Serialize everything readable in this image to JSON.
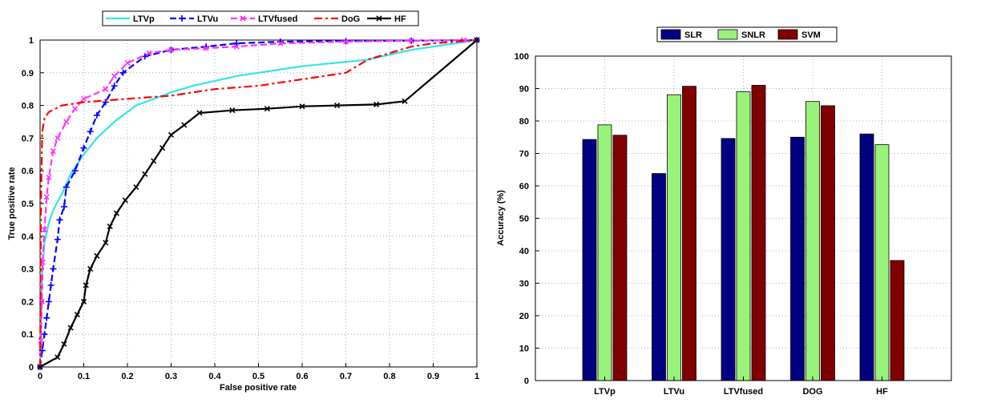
{
  "chart_data": [
    {
      "type": "line",
      "xlabel": "False positive rate",
      "ylabel": "True positive rate",
      "xlim": [
        0,
        1
      ],
      "ylim": [
        0,
        1
      ],
      "xticks": [
        "0",
        "0.1",
        "0.2",
        "0.3",
        "0.4",
        "0.5",
        "0.6",
        "0.7",
        "0.8",
        "0.9",
        "1"
      ],
      "yticks": [
        "0",
        "0.1",
        "0.2",
        "0.3",
        "0.4",
        "0.5",
        "0.6",
        "0.7",
        "0.8",
        "0.9",
        "1"
      ],
      "grid": true,
      "legend": "top",
      "series": [
        {
          "name": "LTVp",
          "color": "#33e6e6",
          "dash": "solid",
          "marker": "none",
          "points": [
            [
              0,
              0
            ],
            [
              0.005,
              0.3
            ],
            [
              0.01,
              0.38
            ],
            [
              0.02,
              0.44
            ],
            [
              0.03,
              0.48
            ],
            [
              0.05,
              0.53
            ],
            [
              0.07,
              0.59
            ],
            [
              0.1,
              0.65
            ],
            [
              0.13,
              0.7
            ],
            [
              0.17,
              0.75
            ],
            [
              0.22,
              0.8
            ],
            [
              0.3,
              0.84
            ],
            [
              0.35,
              0.86
            ],
            [
              0.45,
              0.89
            ],
            [
              0.6,
              0.92
            ],
            [
              0.75,
              0.94
            ],
            [
              0.85,
              0.97
            ],
            [
              0.95,
              0.99
            ],
            [
              1,
              1
            ]
          ]
        },
        {
          "name": "LTVu",
          "color": "#0000ff",
          "dash": "8,4",
          "marker": "plus",
          "points": [
            [
              0,
              0
            ],
            [
              0.005,
              0.05
            ],
            [
              0.01,
              0.1
            ],
            [
              0.015,
              0.15
            ],
            [
              0.02,
              0.2
            ],
            [
              0.025,
              0.25
            ],
            [
              0.03,
              0.3
            ],
            [
              0.04,
              0.39
            ],
            [
              0.045,
              0.45
            ],
            [
              0.055,
              0.49
            ],
            [
              0.06,
              0.55
            ],
            [
              0.08,
              0.6
            ],
            [
              0.1,
              0.67
            ],
            [
              0.115,
              0.72
            ],
            [
              0.13,
              0.77
            ],
            [
              0.15,
              0.81
            ],
            [
              0.17,
              0.86
            ],
            [
              0.19,
              0.9
            ],
            [
              0.24,
              0.95
            ],
            [
              0.3,
              0.97
            ],
            [
              0.38,
              0.98
            ],
            [
              0.45,
              0.99
            ],
            [
              0.55,
              0.995
            ],
            [
              0.7,
              0.997
            ],
            [
              0.85,
              0.998
            ],
            [
              1,
              1
            ]
          ]
        },
        {
          "name": "LTVfused",
          "color": "#ff33ff",
          "dash": "8,4",
          "marker": "x",
          "points": [
            [
              0,
              0
            ],
            [
              0.002,
              0.08
            ],
            [
              0.004,
              0.2
            ],
            [
              0.006,
              0.32
            ],
            [
              0.01,
              0.42
            ],
            [
              0.015,
              0.52
            ],
            [
              0.02,
              0.58
            ],
            [
              0.03,
              0.66
            ],
            [
              0.04,
              0.7
            ],
            [
              0.06,
              0.75
            ],
            [
              0.08,
              0.79
            ],
            [
              0.1,
              0.82
            ],
            [
              0.15,
              0.85
            ],
            [
              0.17,
              0.89
            ],
            [
              0.2,
              0.93
            ],
            [
              0.25,
              0.96
            ],
            [
              0.3,
              0.97
            ],
            [
              0.38,
              0.975
            ],
            [
              0.45,
              0.98
            ],
            [
              0.55,
              0.99
            ],
            [
              0.7,
              0.995
            ],
            [
              0.85,
              0.998
            ],
            [
              0.97,
              1
            ],
            [
              1,
              1
            ]
          ]
        },
        {
          "name": "DoG",
          "color": "#ff0000",
          "dash": "10,4,3,4",
          "marker": "none",
          "points": [
            [
              0,
              0
            ],
            [
              0.002,
              0.5
            ],
            [
              0.005,
              0.72
            ],
            [
              0.01,
              0.76
            ],
            [
              0.02,
              0.78
            ],
            [
              0.05,
              0.8
            ],
            [
              0.1,
              0.81
            ],
            [
              0.2,
              0.82
            ],
            [
              0.3,
              0.83
            ],
            [
              0.4,
              0.85
            ],
            [
              0.5,
              0.86
            ],
            [
              0.55,
              0.87
            ],
            [
              0.6,
              0.88
            ],
            [
              0.65,
              0.89
            ],
            [
              0.7,
              0.9
            ],
            [
              0.75,
              0.94
            ],
            [
              0.8,
              0.96
            ],
            [
              0.85,
              0.98
            ],
            [
              0.9,
              0.99
            ],
            [
              1,
              1
            ]
          ]
        },
        {
          "name": "HF",
          "color": "#000000",
          "dash": "solid",
          "marker": "x",
          "points": [
            [
              0,
              0
            ],
            [
              0.04,
              0.03
            ],
            [
              0.055,
              0.07
            ],
            [
              0.07,
              0.12
            ],
            [
              0.085,
              0.16
            ],
            [
              0.1,
              0.2
            ],
            [
              0.105,
              0.25
            ],
            [
              0.115,
              0.3
            ],
            [
              0.13,
              0.34
            ],
            [
              0.15,
              0.38
            ],
            [
              0.16,
              0.43
            ],
            [
              0.175,
              0.47
            ],
            [
              0.195,
              0.51
            ],
            [
              0.22,
              0.55
            ],
            [
              0.24,
              0.59
            ],
            [
              0.26,
              0.63
            ],
            [
              0.28,
              0.67
            ],
            [
              0.3,
              0.71
            ],
            [
              0.33,
              0.74
            ],
            [
              0.365,
              0.777
            ],
            [
              0.44,
              0.785
            ],
            [
              0.52,
              0.79
            ],
            [
              0.6,
              0.797
            ],
            [
              0.68,
              0.8
            ],
            [
              0.77,
              0.803
            ],
            [
              0.835,
              0.813
            ],
            [
              1,
              1
            ]
          ]
        }
      ]
    },
    {
      "type": "bar",
      "ylabel": "Accuracy (%)",
      "ylim": [
        0,
        100
      ],
      "yticks": [
        "0",
        "10",
        "20",
        "30",
        "40",
        "50",
        "60",
        "70",
        "80",
        "90",
        "100"
      ],
      "grid": true,
      "legend": "top",
      "categories": [
        "LTVp",
        "LTVu",
        "LTVfused",
        "DOG",
        "HF"
      ],
      "series": [
        {
          "name": "SLR",
          "color": "#000080",
          "values": [
            74.3,
            63.8,
            74.6,
            75.0,
            76.0
          ]
        },
        {
          "name": "SNLR",
          "color": "#99f27a",
          "values": [
            78.8,
            88.1,
            89.0,
            86.0,
            72.7
          ]
        },
        {
          "name": "SVM",
          "color": "#800000",
          "values": [
            75.6,
            90.7,
            91.0,
            84.7,
            37.0
          ]
        }
      ]
    }
  ]
}
